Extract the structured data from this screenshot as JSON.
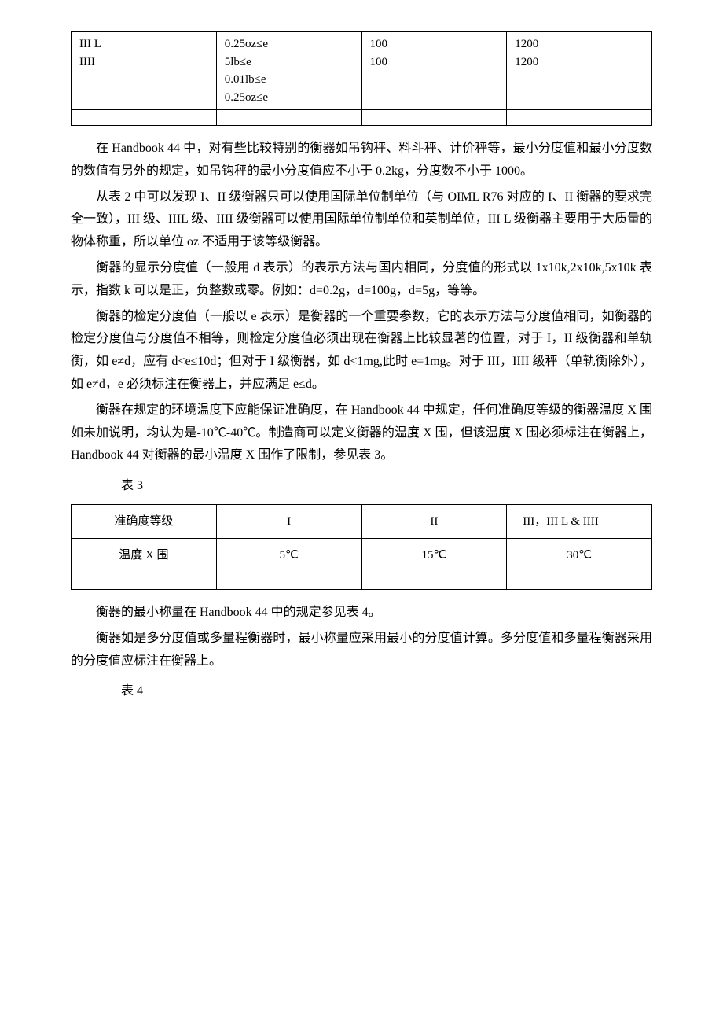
{
  "table1": {
    "rows": [
      {
        "col1": "III L\nIIII",
        "col2": "0.25oz≤e\n5lb≤e\n0.01lb≤e\n0.25oz≤e",
        "col3": "100\n100",
        "col4": "1200\n1200"
      }
    ]
  },
  "paragraphs": {
    "p1": "在 Handbook 44 中，对有些比较特别的衡器如吊钩秤、料斗秤、计价秤等，最小分度值和最小分度数的数值有另外的规定，如吊钩秤的最小分度值应不小于 0.2kg，分度数不小于 1000。",
    "p2": "从表 2 中可以发现 I、II 级衡器只可以使用国际单位制单位（与 OIML R76 对应的 I、II 衡器的要求完全一致），III 级、IIIL 级、IIII 级衡器可以使用国际单位制单位和英制单位，III L 级衡器主要用于大质量的物体称重，所以单位 oz 不适用于该等级衡器。",
    "p3": "衡器的显示分度值（一般用 d 表示）的表示方法与国内相同，分度值的形式以 1x10k,2x10k,5x10k 表示，指数 k 可以是正，负整数或零。例如：d=0.2g，d=100g，d=5g，等等。",
    "p4": "衡器的检定分度值（一般以 e 表示）是衡器的一个重要参数，它的表示方法与分度值相同，如衡器的检定分度值与分度值不相等，则检定分度值必须出现在衡器上比较显著的位置，对于 I，II 级衡器和单轨衡，如 e≠d，应有 d<e≤10d；但对于 I 级衡器，如 d<1mg,此时 e=1mg。对于 III，IIII 级秤（单轨衡除外），如 e≠d，e 必须标注在衡器上，并应满足 e≤d。",
    "p5": "衡器在规定的环境温度下应能保证准确度，在 Handbook 44 中规定，任何准确度等级的衡器温度 X 围如未加说明，均认为是-10℃-40℃。制造商可以定义衡器的温度 X 围，但该温度 X 围必须标注在衡器上，Handbook 44 对衡器的最小温度 X 围作了限制，参见表 3。",
    "p6": "衡器的最小称量在 Handbook 44 中的规定参见表 4。",
    "p7": "衡器如是多分度值或多量程衡器时，最小称量应采用最小的分度值计算。多分度值和多量程衡器采用的分度值应标注在衡器上。"
  },
  "table3_label": "表 3",
  "table4_label": "表 4",
  "table3": {
    "header": {
      "c1": "准确度等级",
      "c2": "I",
      "c3": "II",
      "c4": "III，III L & IIII"
    },
    "row1": {
      "c1": "温度 X 围",
      "c2": "5℃",
      "c3": "15℃",
      "c4": "30℃"
    }
  }
}
